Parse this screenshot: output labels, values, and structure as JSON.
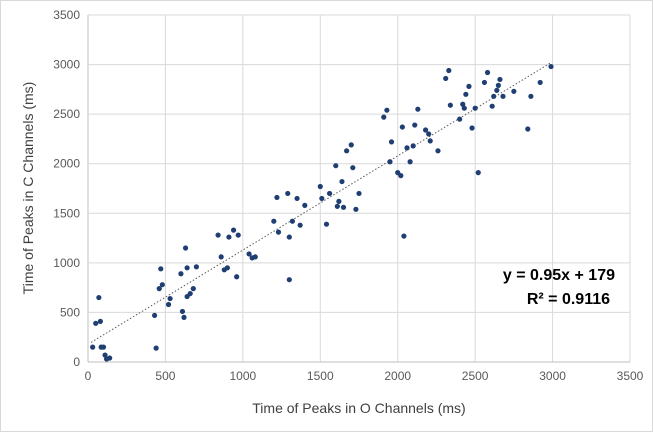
{
  "chart_data": {
    "type": "scatter",
    "title": "",
    "xlabel": "Time of Peaks in O Channels (ms)",
    "ylabel": "Time of Peaks in C Channels (ms)",
    "xlim": [
      0,
      3500
    ],
    "ylim": [
      0,
      3500
    ],
    "xticks": [
      "0",
      "500",
      "1000",
      "1500",
      "2000",
      "2500",
      "3000",
      "3500"
    ],
    "yticks": [
      "0",
      "500",
      "1000",
      "1500",
      "2000",
      "2500",
      "3000",
      "3500"
    ],
    "grid": true,
    "legend": "none",
    "marker_color": "#1f3f73",
    "trendline": {
      "slope": 0.95,
      "intercept": 179,
      "x_range": [
        20,
        2990
      ],
      "style": "dotted",
      "color": "#5a5a5a"
    },
    "annotations": {
      "equation": "y = 0.95x + 179",
      "r_squared": "R² = 0.9116"
    },
    "points": [
      [
        30,
        150
      ],
      [
        50,
        390
      ],
      [
        70,
        650
      ],
      [
        80,
        410
      ],
      [
        85,
        150
      ],
      [
        100,
        150
      ],
      [
        110,
        70
      ],
      [
        120,
        30
      ],
      [
        140,
        40
      ],
      [
        430,
        470
      ],
      [
        440,
        140
      ],
      [
        460,
        740
      ],
      [
        470,
        940
      ],
      [
        480,
        780
      ],
      [
        520,
        580
      ],
      [
        530,
        640
      ],
      [
        600,
        890
      ],
      [
        610,
        510
      ],
      [
        620,
        450
      ],
      [
        630,
        1150
      ],
      [
        640,
        950
      ],
      [
        640,
        660
      ],
      [
        660,
        690
      ],
      [
        680,
        740
      ],
      [
        700,
        960
      ],
      [
        840,
        1280
      ],
      [
        860,
        1060
      ],
      [
        880,
        930
      ],
      [
        900,
        950
      ],
      [
        910,
        1260
      ],
      [
        940,
        1330
      ],
      [
        960,
        860
      ],
      [
        970,
        1280
      ],
      [
        1040,
        1090
      ],
      [
        1060,
        1050
      ],
      [
        1080,
        1060
      ],
      [
        1200,
        1420
      ],
      [
        1220,
        1660
      ],
      [
        1230,
        1310
      ],
      [
        1290,
        1700
      ],
      [
        1300,
        830
      ],
      [
        1300,
        1260
      ],
      [
        1320,
        1420
      ],
      [
        1350,
        1650
      ],
      [
        1370,
        1380
      ],
      [
        1400,
        1580
      ],
      [
        1500,
        1770
      ],
      [
        1510,
        1650
      ],
      [
        1540,
        1390
      ],
      [
        1560,
        1700
      ],
      [
        1600,
        1980
      ],
      [
        1610,
        1570
      ],
      [
        1620,
        1620
      ],
      [
        1640,
        1820
      ],
      [
        1650,
        1560
      ],
      [
        1670,
        2130
      ],
      [
        1700,
        2190
      ],
      [
        1710,
        1960
      ],
      [
        1730,
        1540
      ],
      [
        1750,
        1700
      ],
      [
        1910,
        2470
      ],
      [
        1930,
        2540
      ],
      [
        1950,
        2020
      ],
      [
        1960,
        2220
      ],
      [
        2000,
        1910
      ],
      [
        2020,
        1880
      ],
      [
        2030,
        2370
      ],
      [
        2040,
        1270
      ],
      [
        2060,
        2160
      ],
      [
        2080,
        2020
      ],
      [
        2100,
        2180
      ],
      [
        2110,
        2390
      ],
      [
        2130,
        2550
      ],
      [
        2180,
        2340
      ],
      [
        2200,
        2300
      ],
      [
        2210,
        2230
      ],
      [
        2260,
        2130
      ],
      [
        2310,
        2860
      ],
      [
        2330,
        2940
      ],
      [
        2340,
        2590
      ],
      [
        2400,
        2450
      ],
      [
        2420,
        2600
      ],
      [
        2430,
        2560
      ],
      [
        2440,
        2700
      ],
      [
        2460,
        2780
      ],
      [
        2480,
        2360
      ],
      [
        2500,
        2560
      ],
      [
        2520,
        1910
      ],
      [
        2560,
        2820
      ],
      [
        2580,
        2920
      ],
      [
        2610,
        2580
      ],
      [
        2620,
        2680
      ],
      [
        2640,
        2740
      ],
      [
        2650,
        2790
      ],
      [
        2660,
        2850
      ],
      [
        2680,
        2680
      ],
      [
        2750,
        2730
      ],
      [
        2840,
        2350
      ],
      [
        2860,
        2680
      ],
      [
        2920,
        2820
      ],
      [
        2990,
        2980
      ]
    ]
  }
}
